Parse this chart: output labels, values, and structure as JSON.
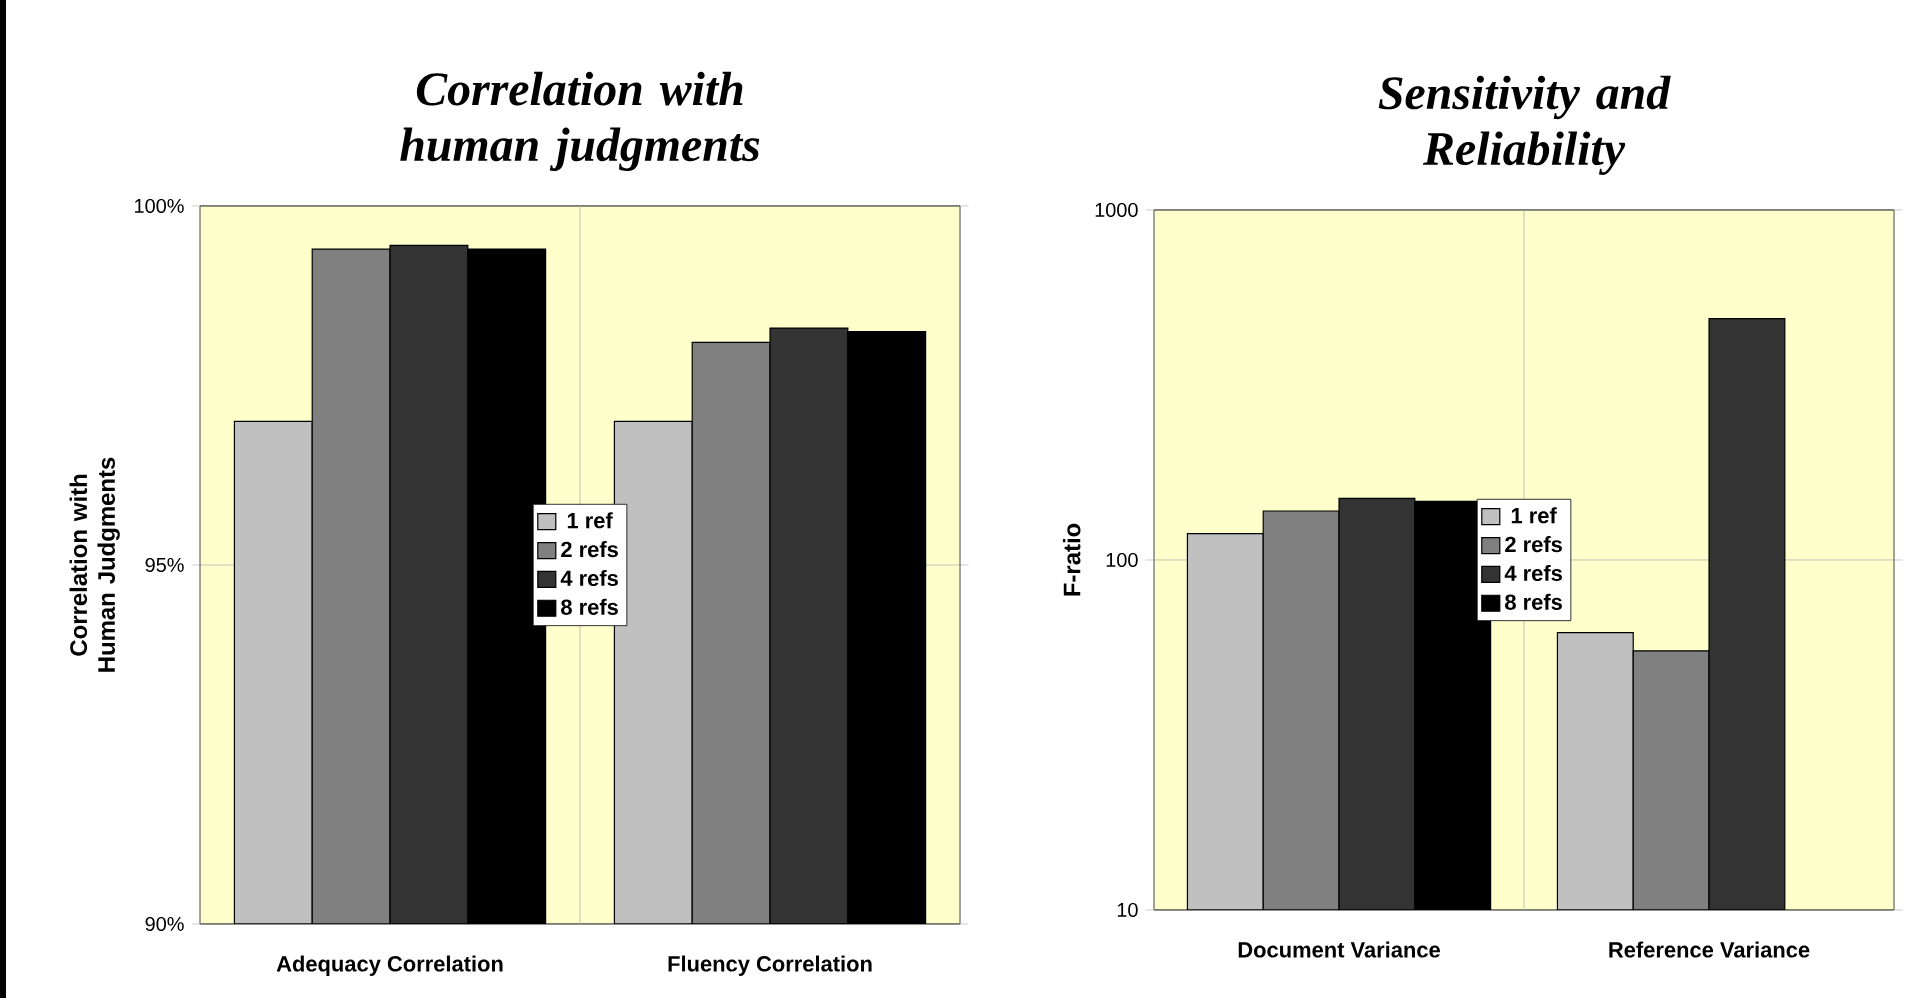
{
  "chart_data": [
    {
      "type": "bar",
      "title": "Correlation with human judgments",
      "ylabel": "Correlation with Human Judgments",
      "categories": [
        "Adequacy Correlation",
        "Fluency Correlation"
      ],
      "series": [
        {
          "name": "1 ref",
          "color": "#c0c0c0",
          "values": [
            97.0,
            97.0
          ]
        },
        {
          "name": "2 refs",
          "color": "#808080",
          "values": [
            99.4,
            98.1
          ]
        },
        {
          "name": "4 refs",
          "color": "#333333",
          "values": [
            99.45,
            98.3
          ]
        },
        {
          "name": "8 refs",
          "color": "#000000",
          "values": [
            99.4,
            98.25
          ]
        }
      ],
      "ylim": [
        90,
        100
      ],
      "yticks": [
        {
          "value": 90,
          "label": "90%"
        },
        {
          "value": 95,
          "label": "95%"
        },
        {
          "value": 100,
          "label": "100%"
        }
      ],
      "grid": true,
      "legend": "center"
    },
    {
      "type": "bar",
      "title": "Sensitivity and Reliability",
      "ylabel": "F-ratio",
      "categories": [
        "Document Variance",
        "Reference Variance"
      ],
      "series": [
        {
          "name": "1 ref",
          "color": "#c0c0c0",
          "values": [
            119,
            62
          ]
        },
        {
          "name": "2 refs",
          "color": "#808080",
          "values": [
            138,
            55
          ]
        },
        {
          "name": "4 refs",
          "color": "#333333",
          "values": [
            150,
            489
          ]
        },
        {
          "name": "8 refs",
          "color": "#000000",
          "values": [
            147,
            null
          ]
        }
      ],
      "log": true,
      "ylim": [
        10,
        1000
      ],
      "yticks": [
        10,
        100,
        1000
      ],
      "grid": true,
      "legend": "center"
    }
  ]
}
